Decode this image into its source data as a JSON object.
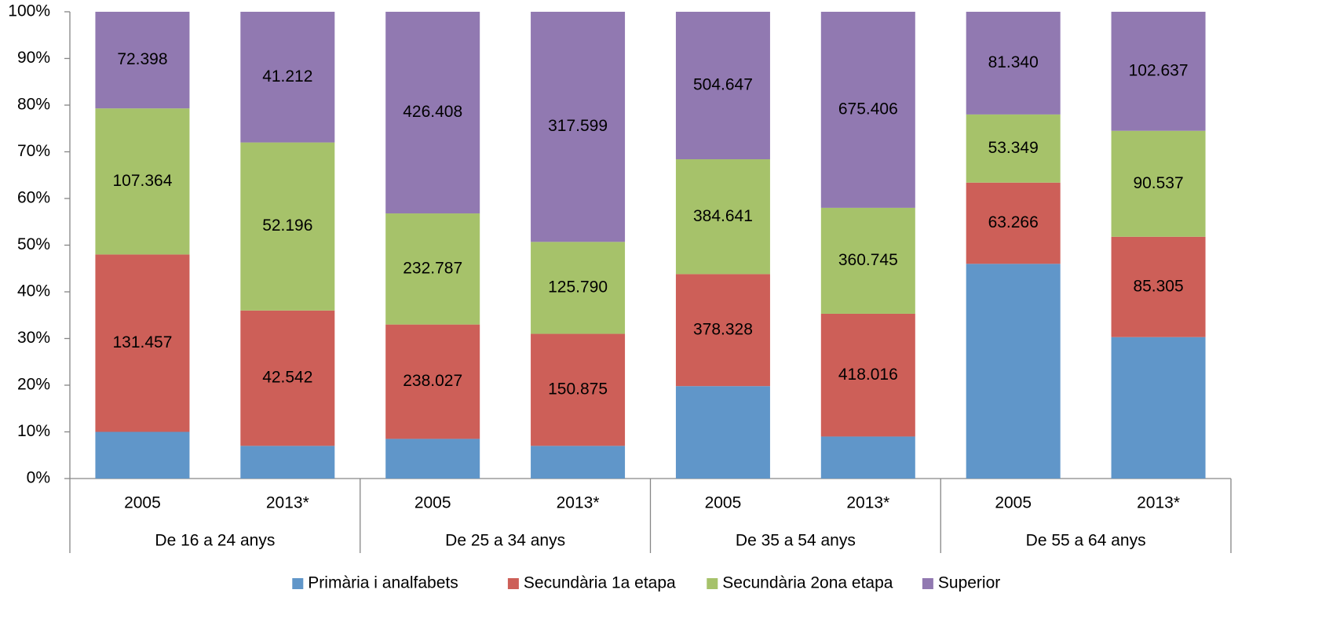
{
  "chart_data": {
    "type": "stacked-bar-100",
    "groups": [
      "De 16 a 24 anys",
      "De 25 a 34 anys",
      "De 35 a 54 anys",
      "De 55 a 64 anys"
    ],
    "categories": [
      "2005",
      "2013*",
      "2005",
      "2013*",
      "2005",
      "2013*",
      "2005",
      "2013*"
    ],
    "series": [
      {
        "name": "Primària i analfabets",
        "color": "#6096c9",
        "values": [
          10,
          7,
          8.5,
          7,
          19.8,
          9,
          46,
          30.3
        ]
      },
      {
        "name": "Secundària 1a etapa",
        "color": "#cd5f58",
        "values": [
          38,
          29,
          24.5,
          24,
          24,
          26.3,
          17.4,
          21.5
        ],
        "data_labels": [
          "131.457",
          "42.542",
          "238.027",
          "150.875",
          "378.328",
          "418.016",
          "63.266",
          "85.305"
        ]
      },
      {
        "name": "Secundària 2ona etapa",
        "color": "#a6c26a",
        "values": [
          31.3,
          36,
          23.8,
          19.7,
          24.6,
          22.7,
          14.6,
          22.7
        ],
        "data_labels": [
          "107.364",
          "52.196",
          "232.787",
          "125.790",
          "384.641",
          "360.745",
          "53.349",
          "90.537"
        ]
      },
      {
        "name": "Superior",
        "color": "#9179b1",
        "values": [
          20.7,
          28,
          43.2,
          49.3,
          31.6,
          42,
          22,
          25.5
        ],
        "data_labels": [
          "72.398",
          "41.212",
          "426.408",
          "317.599",
          "504.647",
          "675.406",
          "81.340",
          "102.637"
        ]
      }
    ],
    "ylim": [
      0,
      100
    ],
    "yticks": [
      {
        "value": 0,
        "label": "0%"
      },
      {
        "value": 10,
        "label": "10%"
      },
      {
        "value": 20,
        "label": "20%"
      },
      {
        "value": 30,
        "label": "30%"
      },
      {
        "value": 40,
        "label": "40%"
      },
      {
        "value": 50,
        "label": "50%"
      },
      {
        "value": 60,
        "label": "60%"
      },
      {
        "value": 70,
        "label": "70%"
      },
      {
        "value": 80,
        "label": "80%"
      },
      {
        "value": 90,
        "label": "90%"
      },
      {
        "value": 100,
        "label": "100%"
      }
    ],
    "legend": "bottom"
  }
}
